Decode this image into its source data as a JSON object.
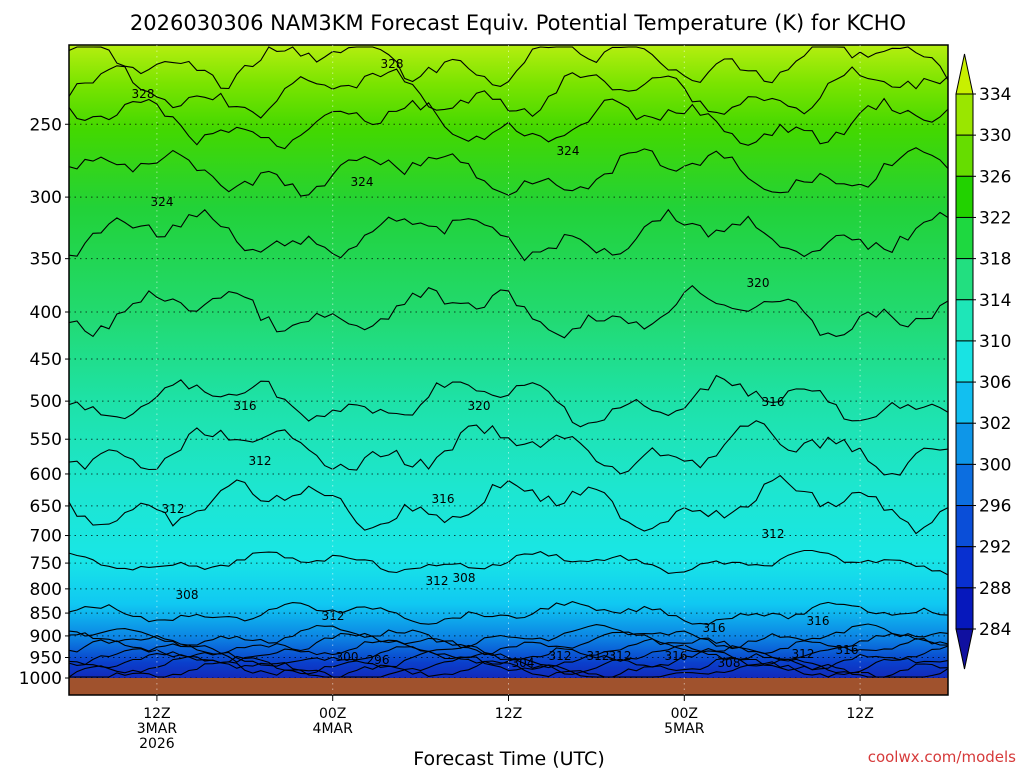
{
  "chart_data": {
    "type": "heatmap",
    "title": "2026030306 NAM3KM Forecast Equiv. Potential Temperature (K) for KCHO",
    "xlabel": "Forecast Time (UTC)",
    "ylabel": "",
    "credit": "coolwx.com/models",
    "y_axis": {
      "scale": "log-pressure",
      "range": [
        1000,
        205
      ],
      "ticks": [
        "250",
        "300",
        "350",
        "400",
        "450",
        "500",
        "550",
        "600",
        "650",
        "700",
        "750",
        "800",
        "850",
        "900",
        "950",
        "1000"
      ]
    },
    "x_axis": {
      "range_hours": [
        0,
        60
      ],
      "ticks": [
        {
          "hour": 6,
          "lines": [
            "12Z",
            "3MAR",
            "2026"
          ]
        },
        {
          "hour": 18,
          "lines": [
            "00Z",
            "4MAR"
          ]
        },
        {
          "hour": 30,
          "lines": [
            "12Z"
          ]
        },
        {
          "hour": 42,
          "lines": [
            "00Z",
            "5MAR"
          ]
        },
        {
          "hour": 54,
          "lines": [
            "12Z"
          ]
        }
      ]
    },
    "colorbar": {
      "levels": [
        "334",
        "330",
        "326",
        "322",
        "318",
        "314",
        "310",
        "306",
        "302",
        "300",
        "296",
        "292",
        "288",
        "284"
      ],
      "colors": [
        "#c8f000",
        "#9ae600",
        "#66dd00",
        "#22d200",
        "#1ed840",
        "#22df80",
        "#1ee6b8",
        "#19e3e3",
        "#12bff0",
        "#0e96e8",
        "#0c6ee0",
        "#0a4ed8",
        "#0830d0",
        "#0618bc",
        "#1010a0"
      ]
    },
    "contour_labels": [
      "328",
      "328",
      "324",
      "324",
      "324",
      "320",
      "320",
      "316",
      "316",
      "316",
      "312",
      "312",
      "312",
      "312",
      "308",
      "308",
      "312",
      "312",
      "316",
      "316",
      "312",
      "316",
      "300",
      "296",
      "304",
      "312",
      "308",
      "312",
      "316"
    ],
    "profile": {
      "pressure_hpa": [
        1000,
        950,
        900,
        850,
        800,
        700,
        600,
        500,
        400,
        300,
        250,
        205
      ],
      "theta_e_k": [
        294,
        302,
        308,
        310,
        311,
        313,
        315,
        318,
        320,
        323,
        326,
        331
      ]
    },
    "ground_color": "#a0522d"
  }
}
